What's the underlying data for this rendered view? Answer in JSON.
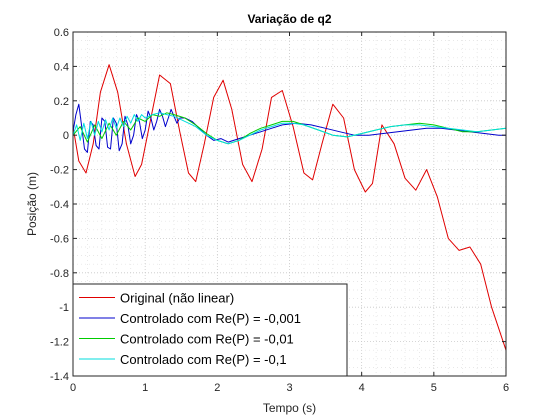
{
  "chart_data": {
    "type": "line",
    "title": "Variação de q2",
    "xlabel": "Tempo (s)",
    "ylabel": "Posição (m)",
    "xlim": [
      0,
      6
    ],
    "ylim": [
      -1.4,
      0.6
    ],
    "xticks": [
      "0",
      "1",
      "2",
      "3",
      "4",
      "5",
      "6"
    ],
    "yticks": [
      "0.6",
      "0.4",
      "0.2",
      "0",
      "-0.2",
      "-0.4",
      "-0.6",
      "-0.8",
      "-1",
      "-1.2",
      "-1.4"
    ],
    "grid": "major and minor (dotted)",
    "legend_location": "bottom-left",
    "series": [
      {
        "name": "Original (não linear)",
        "color": "#e00000",
        "x": [
          0,
          0.08,
          0.18,
          0.28,
          0.38,
          0.5,
          0.62,
          0.74,
          0.86,
          0.95,
          1.08,
          1.2,
          1.35,
          1.48,
          1.6,
          1.7,
          1.82,
          1.95,
          2.08,
          2.2,
          2.35,
          2.48,
          2.62,
          2.75,
          2.9,
          3.05,
          3.2,
          3.32,
          3.45,
          3.6,
          3.75,
          3.9,
          4.05,
          4.15,
          4.28,
          4.45,
          4.6,
          4.75,
          4.9,
          5.05,
          5.2,
          5.35,
          5.5,
          5.65,
          5.8,
          6.0
        ],
        "y": [
          0.05,
          -0.15,
          -0.22,
          -0.05,
          0.25,
          0.41,
          0.25,
          -0.05,
          -0.24,
          -0.17,
          0.1,
          0.35,
          0.3,
          0.02,
          -0.22,
          -0.27,
          -0.05,
          0.22,
          0.32,
          0.15,
          -0.17,
          -0.27,
          -0.08,
          0.22,
          0.26,
          0.05,
          -0.22,
          -0.26,
          -0.05,
          0.18,
          0.1,
          -0.2,
          -0.33,
          -0.28,
          0.06,
          -0.05,
          -0.25,
          -0.32,
          -0.2,
          -0.36,
          -0.6,
          -0.67,
          -0.65,
          -0.75,
          -1.0,
          -1.25
        ]
      },
      {
        "name": "Controlado com Re(P) = -0,001",
        "color": "#0000cc",
        "x": [
          0,
          0.04,
          0.08,
          0.12,
          0.16,
          0.2,
          0.24,
          0.28,
          0.32,
          0.36,
          0.4,
          0.44,
          0.48,
          0.52,
          0.56,
          0.6,
          0.64,
          0.68,
          0.72,
          0.76,
          0.8,
          0.84,
          0.88,
          0.92,
          0.96,
          1.0,
          1.04,
          1.08,
          1.12,
          1.16,
          1.2,
          1.24,
          1.28,
          1.32,
          1.36,
          1.4,
          1.44,
          1.48,
          1.55,
          1.65,
          1.75,
          1.85,
          1.95,
          2.05,
          2.15,
          2.3,
          2.45,
          2.6,
          2.75,
          2.9,
          3.1,
          3.3,
          3.5,
          3.7,
          3.9,
          4.1,
          4.3,
          4.5,
          4.7,
          4.9,
          5.1,
          5.3,
          5.5,
          5.7,
          5.9,
          6.0
        ],
        "y": [
          0.02,
          0.12,
          0.18,
          0.05,
          -0.08,
          -0.1,
          0.08,
          0.06,
          -0.06,
          -0.08,
          0.1,
          0.08,
          -0.07,
          -0.08,
          0.1,
          0.07,
          -0.09,
          -0.05,
          0.11,
          0.06,
          -0.05,
          0.0,
          0.12,
          0.08,
          -0.02,
          0.03,
          0.14,
          0.1,
          0.03,
          0.08,
          0.15,
          0.11,
          0.05,
          0.1,
          0.15,
          0.11,
          0.07,
          0.1,
          0.1,
          0.08,
          0.04,
          0.0,
          -0.03,
          -0.02,
          -0.04,
          -0.02,
          0.0,
          0.02,
          0.04,
          0.06,
          0.07,
          0.06,
          0.04,
          0.02,
          0.0,
          0.0,
          0.01,
          0.02,
          0.03,
          0.04,
          0.04,
          0.03,
          0.02,
          0.01,
          0.0,
          0.0
        ]
      },
      {
        "name": "Controlado com Re(P) = -0,01",
        "color": "#00cc00",
        "x": [
          0,
          0.1,
          0.2,
          0.3,
          0.4,
          0.5,
          0.6,
          0.7,
          0.8,
          0.9,
          1.0,
          1.1,
          1.2,
          1.3,
          1.4,
          1.55,
          1.7,
          1.85,
          2.0,
          2.15,
          2.3,
          2.45,
          2.6,
          2.75,
          2.9,
          3.05,
          3.2,
          3.4,
          3.6,
          3.8,
          4.0,
          4.2,
          4.4,
          4.6,
          4.8,
          5.0,
          5.2,
          5.4,
          5.6,
          5.8,
          6.0
        ],
        "y": [
          0.0,
          0.05,
          -0.04,
          0.06,
          -0.02,
          0.07,
          0.0,
          0.08,
          0.03,
          0.1,
          0.08,
          0.12,
          0.11,
          0.13,
          0.12,
          0.1,
          0.06,
          0.01,
          -0.03,
          -0.05,
          -0.03,
          0.01,
          0.04,
          0.06,
          0.08,
          0.08,
          0.06,
          0.03,
          0.0,
          -0.01,
          0.01,
          0.03,
          0.05,
          0.06,
          0.07,
          0.06,
          0.04,
          0.02,
          0.02,
          0.03,
          0.04
        ]
      },
      {
        "name": "Controlado com Re(P) = -0,1",
        "color": "#00dede",
        "x": [
          0,
          0.05,
          0.1,
          0.15,
          0.2,
          0.25,
          0.3,
          0.35,
          0.4,
          0.45,
          0.5,
          0.55,
          0.6,
          0.65,
          0.7,
          0.75,
          0.8,
          0.85,
          0.9,
          0.95,
          1.0,
          1.1,
          1.2,
          1.3,
          1.4,
          1.55,
          1.7,
          1.85,
          2.0,
          2.15,
          2.3,
          2.45,
          2.6,
          2.75,
          2.9,
          3.05,
          3.2,
          3.4,
          3.6,
          3.8,
          4.0,
          4.2,
          4.4,
          4.6,
          4.8,
          5.0,
          5.2,
          5.4,
          5.6,
          5.8,
          6.0
        ],
        "y": [
          0.0,
          0.06,
          -0.03,
          0.07,
          -0.02,
          0.08,
          0.0,
          0.08,
          0.02,
          0.09,
          0.03,
          0.1,
          0.04,
          0.1,
          0.05,
          0.11,
          0.07,
          0.12,
          0.08,
          0.12,
          0.1,
          0.12,
          0.13,
          0.12,
          0.11,
          0.08,
          0.05,
          0.0,
          -0.03,
          -0.05,
          -0.03,
          0.0,
          0.03,
          0.05,
          0.07,
          0.07,
          0.06,
          0.03,
          0.0,
          -0.01,
          0.01,
          0.03,
          0.05,
          0.06,
          0.06,
          0.05,
          0.04,
          0.03,
          0.02,
          0.03,
          0.04
        ]
      }
    ]
  }
}
